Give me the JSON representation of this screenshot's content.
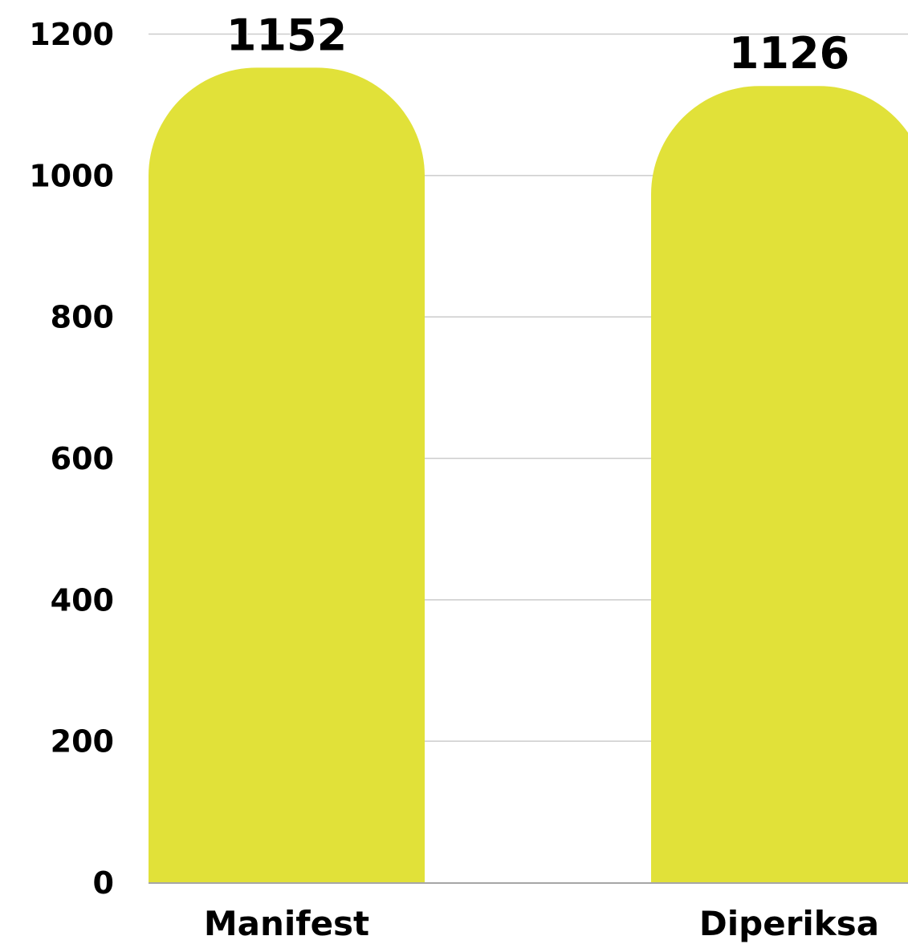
{
  "chart_data": {
    "type": "bar",
    "categories": [
      "Manifest",
      "Diperiksa"
    ],
    "values": [
      1152,
      1126
    ],
    "data_labels": [
      "1152",
      "1126"
    ],
    "ylim": [
      0,
      1200
    ],
    "yticks": [
      "0",
      "200",
      "400",
      "600",
      "800",
      "1000",
      "1200"
    ],
    "title": "",
    "xlabel": "",
    "ylabel": "",
    "grid": true,
    "legend": "none",
    "colors": {
      "bar": "#e1e139",
      "grid": "#cccccc",
      "axis": "#888888",
      "text": "#000000"
    }
  }
}
